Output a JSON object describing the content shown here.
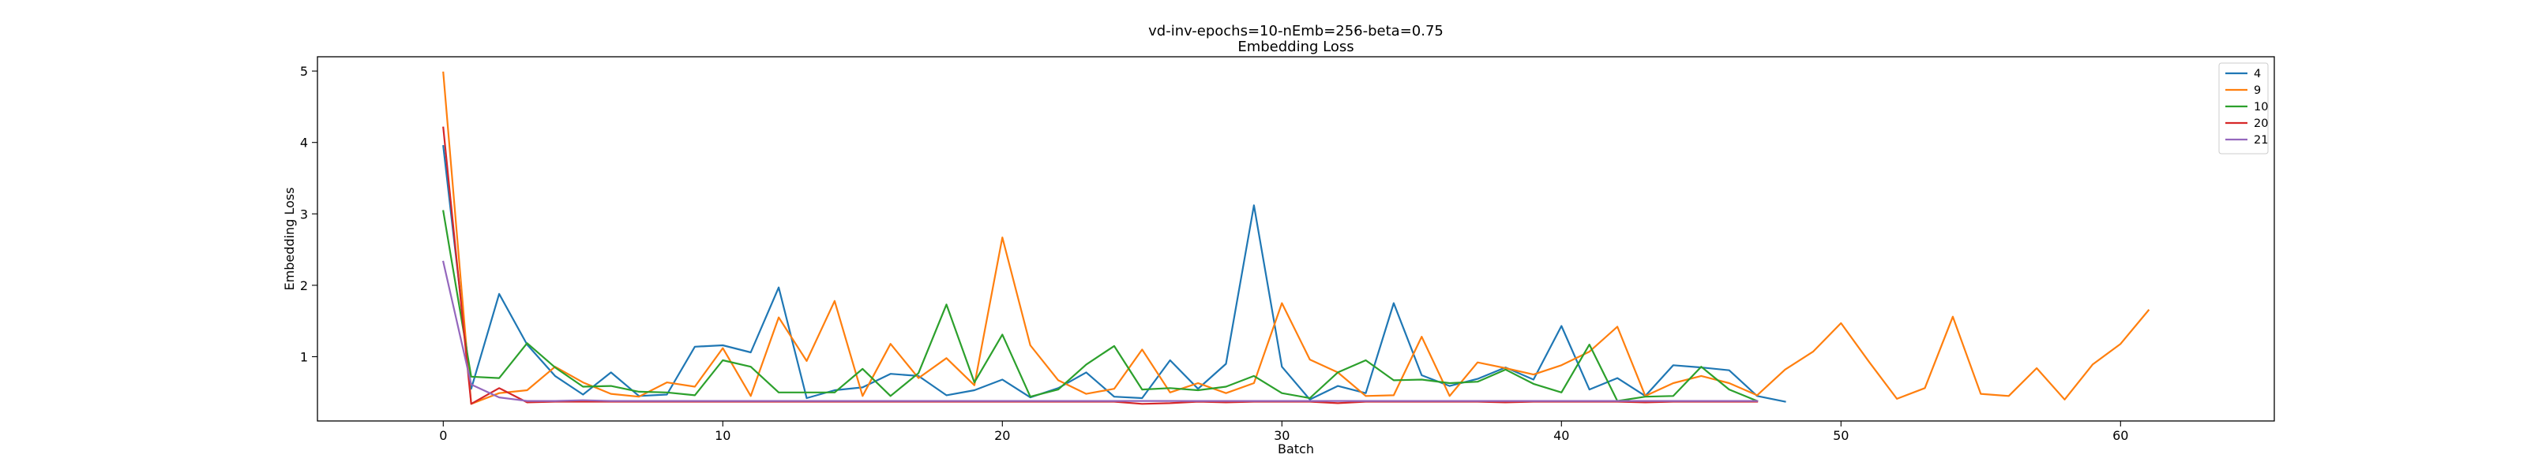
{
  "chart_data": {
    "type": "line",
    "title": "vd-inv-epochs=10-nEmb=256-beta=0.75",
    "subtitle": "Embedding Loss",
    "xlabel": "Batch",
    "ylabel": "Embedding Loss",
    "xlim": [
      -4.5,
      65.5
    ],
    "ylim": [
      0.1,
      5.2
    ],
    "xticks": [
      0,
      10,
      20,
      30,
      40,
      50,
      60
    ],
    "yticks": [
      1,
      2,
      3,
      4,
      5
    ],
    "grid": false,
    "legend_position": "top-right",
    "series": [
      {
        "name": "4",
        "color": "#1f77b4",
        "values": [
          3.95,
          0.55,
          1.88,
          1.17,
          0.73,
          0.47,
          0.78,
          0.45,
          0.47,
          1.14,
          1.16,
          1.06,
          1.97,
          0.42,
          0.53,
          0.57,
          0.76,
          0.73,
          0.46,
          0.53,
          0.68,
          0.43,
          0.56,
          0.78,
          0.44,
          0.42,
          0.95,
          0.55,
          0.9,
          3.12,
          0.86,
          0.4,
          0.59,
          0.49,
          1.75,
          0.74,
          0.59,
          0.69,
          0.85,
          0.68,
          1.43,
          0.54,
          0.7,
          0.45,
          0.88,
          0.85,
          0.81,
          0.45,
          0.37
        ]
      },
      {
        "name": "9",
        "color": "#ff7f0e",
        "values": [
          4.98,
          0.34,
          0.49,
          0.53,
          0.86,
          0.64,
          0.48,
          0.44,
          0.64,
          0.58,
          1.12,
          0.45,
          1.55,
          0.94,
          1.78,
          0.45,
          1.18,
          0.7,
          0.98,
          0.6,
          2.67,
          1.16,
          0.67,
          0.48,
          0.55,
          1.1,
          0.5,
          0.63,
          0.49,
          0.63,
          1.75,
          0.96,
          0.78,
          0.45,
          0.46,
          1.28,
          0.45,
          0.92,
          0.84,
          0.75,
          0.88,
          1.07,
          1.42,
          0.45,
          0.63,
          0.73,
          0.63,
          0.46,
          0.82,
          1.07,
          1.47,
          0.93,
          0.41,
          0.56,
          1.56,
          0.48,
          0.45,
          0.84,
          0.4,
          0.89,
          1.18,
          1.65
        ]
      },
      {
        "name": "10",
        "color": "#2ca02c",
        "values": [
          3.04,
          0.72,
          0.7,
          1.19,
          0.85,
          0.58,
          0.59,
          0.51,
          0.5,
          0.46,
          0.95,
          0.86,
          0.5,
          0.5,
          0.5,
          0.83,
          0.45,
          0.77,
          1.73,
          0.64,
          1.31,
          0.44,
          0.54,
          0.89,
          1.15,
          0.54,
          0.56,
          0.53,
          0.58,
          0.73,
          0.49,
          0.42,
          0.78,
          0.95,
          0.67,
          0.68,
          0.63,
          0.65,
          0.82,
          0.62,
          0.5,
          1.17,
          0.38,
          0.44,
          0.45,
          0.86,
          0.54,
          0.38
        ]
      },
      {
        "name": "20",
        "color": "#d62728",
        "values": [
          4.21,
          0.34,
          0.56,
          0.36,
          0.37,
          0.37,
          0.37,
          0.37,
          0.37,
          0.37,
          0.37,
          0.37,
          0.37,
          0.37,
          0.37,
          0.37,
          0.37,
          0.37,
          0.37,
          0.37,
          0.37,
          0.37,
          0.37,
          0.37,
          0.37,
          0.34,
          0.35,
          0.37,
          0.36,
          0.37,
          0.37,
          0.37,
          0.35,
          0.37,
          0.37,
          0.37,
          0.37,
          0.37,
          0.36,
          0.37,
          0.37,
          0.37,
          0.37,
          0.36,
          0.37,
          0.37,
          0.37,
          0.37
        ]
      },
      {
        "name": "21",
        "color": "#9467bd",
        "values": [
          2.33,
          0.61,
          0.43,
          0.38,
          0.38,
          0.39,
          0.38,
          0.38,
          0.38,
          0.38,
          0.38,
          0.38,
          0.38,
          0.38,
          0.38,
          0.38,
          0.38,
          0.38,
          0.38,
          0.38,
          0.38,
          0.38,
          0.38,
          0.38,
          0.38,
          0.38,
          0.38,
          0.38,
          0.38,
          0.38,
          0.38,
          0.38,
          0.38,
          0.38,
          0.38,
          0.38,
          0.38,
          0.38,
          0.38,
          0.38,
          0.38,
          0.38,
          0.38,
          0.38,
          0.38,
          0.38,
          0.38,
          0.38
        ]
      }
    ]
  }
}
